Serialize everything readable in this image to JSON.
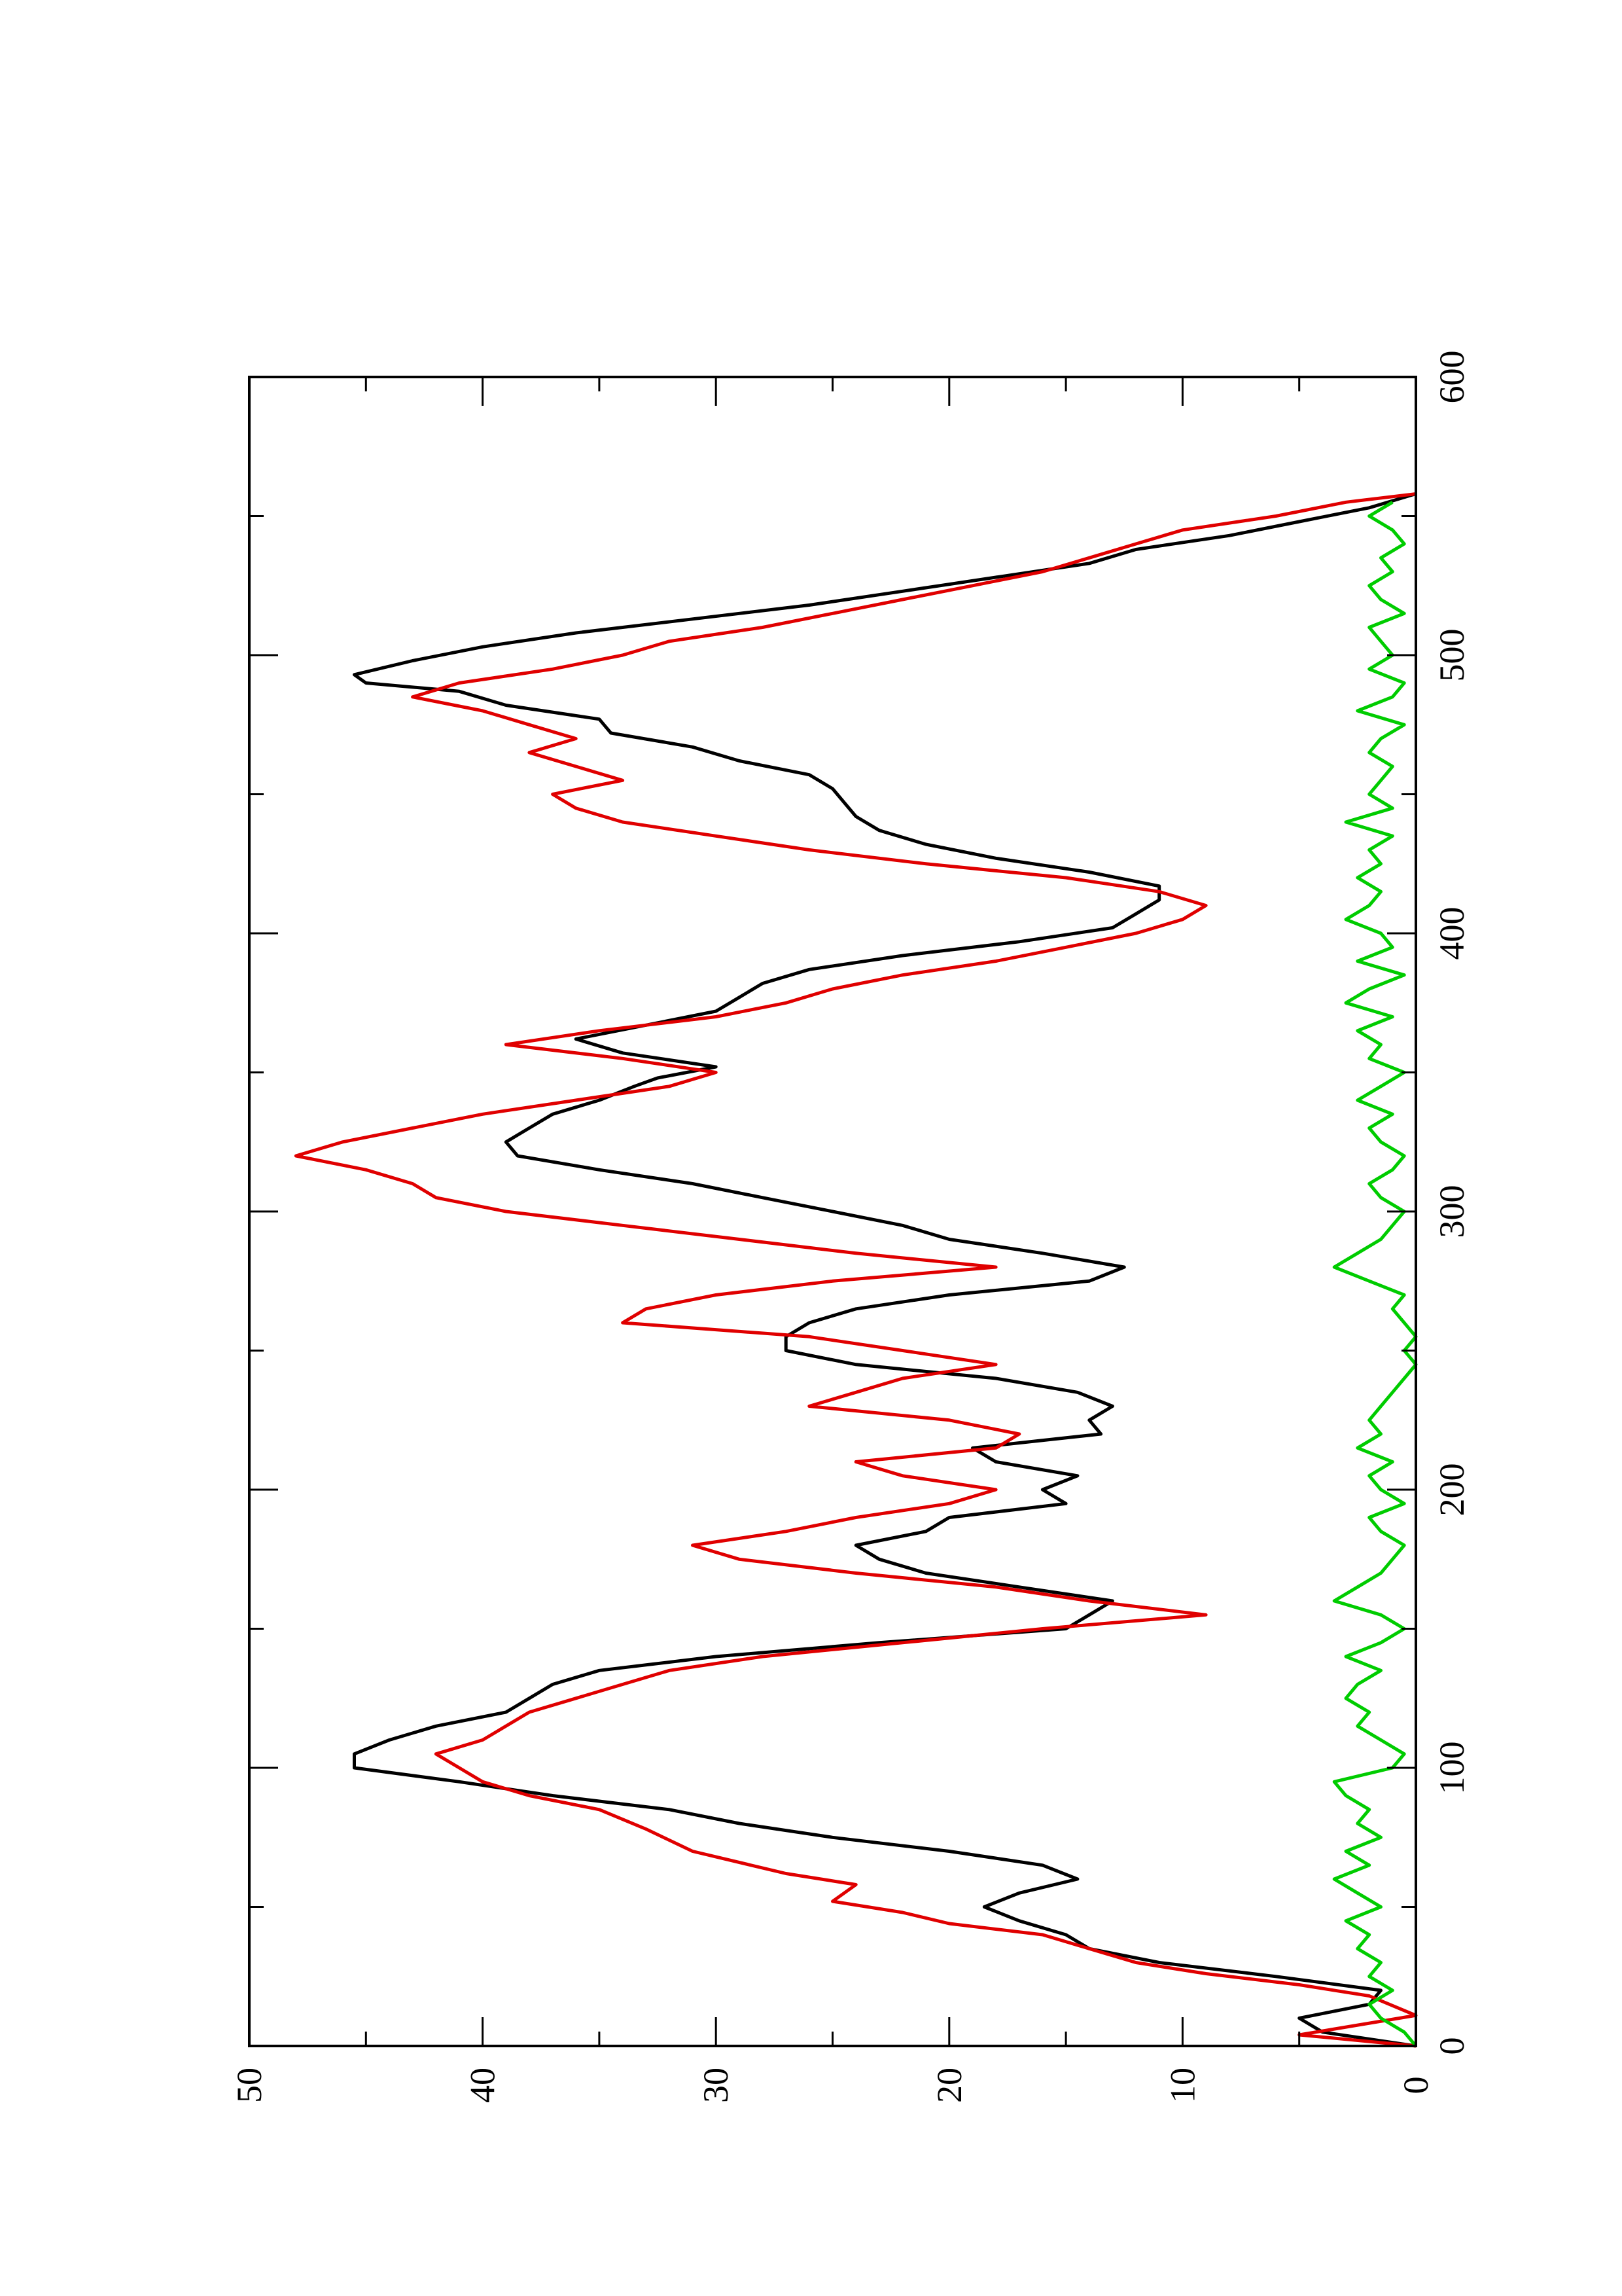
{
  "chart_data": {
    "type": "line",
    "orientation": "rotated-90-counterclockwise",
    "title": "",
    "xlabel": "",
    "ylabel": "",
    "xlim": [
      0,
      600
    ],
    "ylim": [
      0,
      50
    ],
    "x_ticks": [
      0,
      100,
      200,
      300,
      400,
      500,
      600
    ],
    "x_minor_ticks": [
      50,
      150,
      250,
      350,
      450,
      550
    ],
    "y_ticks": [
      0,
      10,
      20,
      30,
      40,
      50
    ],
    "y_minor_ticks": [
      5,
      15,
      25,
      35,
      45
    ],
    "x_tick_labels": [
      "0",
      "100",
      "200",
      "300",
      "400",
      "500",
      "600"
    ],
    "y_tick_labels": [
      "0",
      "10",
      "20",
      "30",
      "40",
      "50"
    ],
    "grid": false,
    "legend": "none",
    "series": [
      {
        "color": "#000000",
        "style": "line",
        "x": [
          0,
          5,
          10,
          15,
          20,
          25,
          30,
          35,
          40,
          45,
          50,
          55,
          60,
          65,
          70,
          75,
          80,
          85,
          90,
          95,
          100,
          105,
          110,
          115,
          120,
          125,
          130,
          135,
          140,
          145,
          150,
          155,
          160,
          165,
          170,
          175,
          180,
          185,
          190,
          195,
          200,
          205,
          210,
          215,
          220,
          225,
          230,
          235,
          240,
          245,
          250,
          255,
          260,
          265,
          270,
          275,
          280,
          285,
          290,
          295,
          300,
          305,
          310,
          315,
          320,
          325,
          330,
          335,
          340,
          345,
          348,
          352,
          357,
          362,
          367,
          372,
          377,
          382,
          387,
          392,
          397,
          402,
          407,
          412,
          417,
          422,
          427,
          432,
          437,
          442,
          447,
          452,
          457,
          462,
          467,
          472,
          477,
          482,
          487,
          490,
          493,
          498,
          503,
          508,
          513,
          518,
          523,
          528,
          533,
          538,
          543,
          548,
          553,
          558
        ],
        "y": [
          0,
          4,
          5,
          2,
          1.5,
          6,
          11,
          14,
          15,
          17,
          18.5,
          17,
          14.5,
          16,
          20,
          25,
          29,
          32,
          37,
          41,
          45.5,
          45.5,
          44,
          42,
          39,
          38,
          37,
          35,
          30,
          23,
          15,
          14,
          13,
          17,
          21,
          23,
          24,
          21,
          20,
          15,
          16,
          14.5,
          18,
          19,
          13.5,
          14,
          13,
          14.5,
          18,
          24,
          27,
          27,
          26,
          24,
          20,
          14,
          12.5,
          16,
          20,
          22,
          25,
          28,
          31,
          35,
          38.5,
          39,
          38,
          37,
          35,
          33.5,
          32.5,
          30,
          34,
          36,
          33,
          30,
          29,
          28,
          26,
          22,
          17,
          13,
          12,
          11,
          11,
          14,
          18,
          21,
          23,
          24,
          24.5,
          25,
          26,
          29,
          31,
          34.5,
          35,
          39,
          41,
          45,
          45.5,
          43,
          40,
          36,
          31,
          26,
          22,
          18,
          14,
          12,
          8,
          5,
          2,
          0
        ]
      },
      {
        "color": "#e00000",
        "style": "line",
        "x": [
          0,
          4,
          11,
          18,
          22,
          26,
          30,
          35,
          40,
          44,
          48,
          52,
          58,
          62,
          70,
          78,
          85,
          90,
          95,
          100,
          105,
          110,
          120,
          125,
          130,
          135,
          140,
          145,
          150,
          155,
          160,
          165,
          170,
          175,
          180,
          185,
          190,
          195,
          200,
          205,
          210,
          215,
          220,
          225,
          230,
          235,
          240,
          245,
          250,
          255,
          260,
          265,
          270,
          275,
          280,
          285,
          290,
          295,
          300,
          305,
          310,
          315,
          320,
          325,
          330,
          335,
          340,
          345,
          350,
          355,
          360,
          365,
          370,
          375,
          380,
          385,
          390,
          395,
          400,
          405,
          410,
          415,
          420,
          425,
          430,
          435,
          440,
          445,
          450,
          455,
          460,
          465,
          470,
          475,
          480,
          485,
          490,
          495,
          500,
          505,
          510,
          515,
          520,
          525,
          530,
          535,
          540,
          545,
          550,
          555,
          558
        ],
        "y": [
          0,
          5,
          0,
          2,
          5,
          9,
          12,
          14,
          16,
          20,
          22,
          25,
          24,
          27,
          31,
          33,
          35,
          38,
          40,
          41,
          42,
          40,
          38,
          36,
          34,
          32,
          28,
          22,
          16,
          9,
          14,
          18,
          24,
          29,
          31,
          27,
          24,
          20,
          18,
          22,
          24,
          18,
          17,
          20,
          26,
          24,
          22,
          18,
          22,
          26,
          34,
          33,
          30,
          25,
          18,
          24,
          29,
          34,
          39,
          42,
          43,
          45,
          48,
          46,
          43,
          40,
          36,
          32,
          30,
          34,
          39,
          35,
          30,
          27,
          25,
          22,
          18,
          15,
          12,
          10,
          9,
          11,
          15,
          21,
          26,
          30,
          34,
          36,
          37,
          34,
          36,
          38,
          36,
          38,
          40,
          43,
          41,
          37,
          34,
          32,
          28,
          25,
          22,
          19,
          16,
          14,
          12,
          10,
          6,
          3,
          0
        ]
      },
      {
        "color": "#00cc00",
        "style": "line",
        "x": [
          0,
          5,
          10,
          15,
          20,
          25,
          30,
          35,
          40,
          45,
          50,
          55,
          60,
          65,
          70,
          75,
          80,
          85,
          90,
          95,
          100,
          105,
          110,
          115,
          120,
          125,
          130,
          135,
          140,
          145,
          150,
          155,
          160,
          165,
          170,
          175,
          180,
          185,
          190,
          195,
          200,
          205,
          210,
          215,
          220,
          225,
          230,
          235,
          240,
          245,
          250,
          255,
          260,
          265,
          270,
          275,
          280,
          285,
          290,
          295,
          300,
          305,
          310,
          315,
          320,
          325,
          330,
          335,
          340,
          345,
          350,
          355,
          360,
          365,
          370,
          375,
          380,
          385,
          390,
          395,
          400,
          405,
          410,
          415,
          420,
          425,
          430,
          435,
          440,
          445,
          450,
          455,
          460,
          465,
          470,
          475,
          480,
          485,
          490,
          495,
          500,
          505,
          510,
          515,
          520,
          525,
          530,
          535,
          540,
          545,
          550,
          555
        ],
        "y": [
          0,
          0.5,
          1.5,
          2,
          1,
          2,
          1.5,
          2.5,
          2,
          3,
          1.5,
          2.5,
          3.5,
          2,
          3,
          1.5,
          2.5,
          2,
          3,
          3.5,
          1,
          0.5,
          1.5,
          2.5,
          2,
          3,
          2.5,
          1.5,
          3,
          1.5,
          0.5,
          1.5,
          3.5,
          2.5,
          1.5,
          1,
          0.5,
          1.5,
          2,
          0.5,
          1.5,
          2,
          1,
          2.5,
          1.5,
          2,
          1.5,
          1,
          0.5,
          0,
          0.5,
          0,
          0.5,
          1,
          0.5,
          2,
          3.5,
          2.5,
          1.5,
          1,
          0.5,
          1.5,
          2,
          1,
          0.5,
          1.5,
          2,
          1,
          2.5,
          1.5,
          0.5,
          2,
          1.5,
          2.5,
          1,
          3,
          2,
          0.5,
          2.5,
          1,
          1.5,
          3,
          2,
          1.5,
          2.5,
          1.5,
          2,
          1,
          3,
          1,
          2,
          1.5,
          1,
          2,
          1.5,
          0.5,
          2.5,
          1,
          0.5,
          2,
          1,
          1.5,
          2,
          0.5,
          1.5,
          2,
          1,
          1.5,
          0.5,
          1,
          2,
          1
        ]
      }
    ]
  }
}
